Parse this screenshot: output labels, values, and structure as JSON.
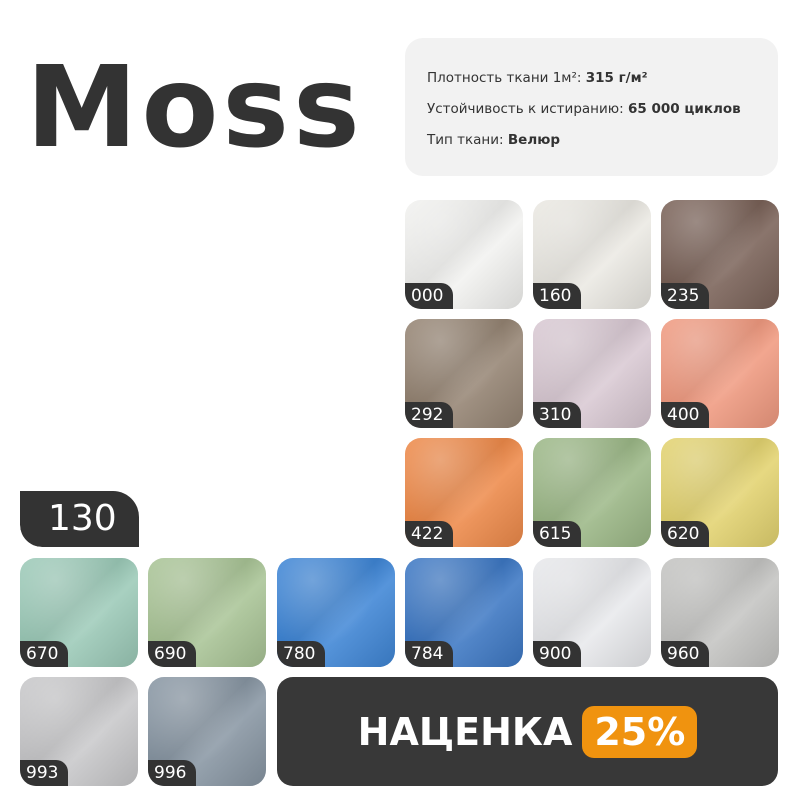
{
  "title": "Moss",
  "specs": {
    "density_label": "Плотность ткани 1м²:",
    "density_value": "315 г/м²",
    "abrasion_label": "Устойчивость к истиранию:",
    "abrasion_value": "65 000 циклов",
    "type_label": "Тип ткани:",
    "type_value": "Велюр"
  },
  "main_swatch": {
    "code": "130",
    "color": "#d9d1c6"
  },
  "swatches": [
    {
      "code": "000",
      "color": "#f2f2f0"
    },
    {
      "code": "160",
      "color": "#ebe9e3"
    },
    {
      "code": "235",
      "color": "#7a6258"
    },
    {
      "code": "292",
      "color": "#958473"
    },
    {
      "code": "310",
      "color": "#d9c9d3"
    },
    {
      "code": "400",
      "color": "#f09a80"
    },
    {
      "code": "422",
      "color": "#ee8a4a"
    },
    {
      "code": "615",
      "color": "#9cb887"
    },
    {
      "code": "620",
      "color": "#e3d370"
    },
    {
      "code": "670",
      "color": "#9ccab8"
    },
    {
      "code": "690",
      "color": "#a9c496"
    },
    {
      "code": "780",
      "color": "#3f86d6"
    },
    {
      "code": "784",
      "color": "#3d78c4"
    },
    {
      "code": "900",
      "color": "#e8e9ec"
    },
    {
      "code": "960",
      "color": "#c4c4c2"
    },
    {
      "code": "993",
      "color": "#c8c8ca"
    },
    {
      "code": "996",
      "color": "#8896a3"
    }
  ],
  "promo": {
    "label": "НАЦЕНКА",
    "percent": "25%",
    "accent": "#f0930f"
  }
}
